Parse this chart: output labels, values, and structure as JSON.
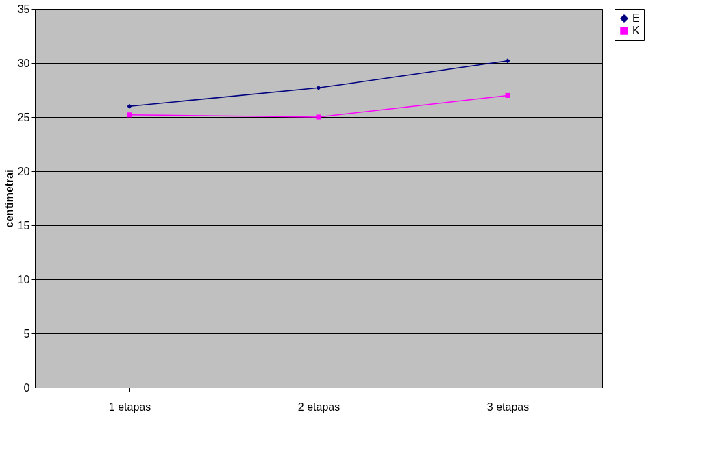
{
  "chart_data": {
    "type": "line",
    "ylabel": "centimetrai",
    "categories": [
      "1 etapas",
      "2 etapas",
      "3 etapas"
    ],
    "series": [
      {
        "name": "E",
        "color": "#000080",
        "marker": "diamond",
        "values": [
          26.0,
          27.7,
          30.2
        ]
      },
      {
        "name": "K",
        "color": "#ff00ff",
        "marker": "square",
        "values": [
          25.2,
          25.0,
          27.0
        ]
      }
    ],
    "ylim": [
      0,
      35
    ],
    "yticks": [
      0,
      5,
      10,
      15,
      20,
      25,
      30,
      35
    ],
    "grid": "y",
    "legend": "right",
    "line_style": "solid"
  }
}
